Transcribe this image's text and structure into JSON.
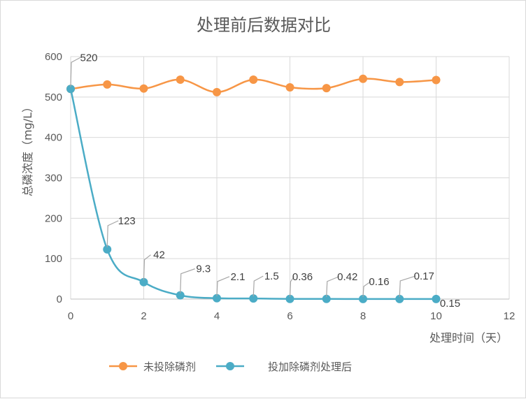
{
  "chart_data": {
    "type": "line",
    "title": "处理前后数据对比",
    "xlabel": "处理时间（天）",
    "ylabel": "总磷浓度（mg/L）",
    "xlim": [
      0,
      12
    ],
    "ylim": [
      0,
      600
    ],
    "x_ticks": [
      "0",
      "2",
      "4",
      "6",
      "8",
      "10",
      "12"
    ],
    "y_ticks": [
      "0",
      "100",
      "200",
      "300",
      "400",
      "500",
      "600"
    ],
    "grid": true,
    "legend_position": "bottom",
    "series": [
      {
        "name": "未投除磷剂",
        "color": "#F79646",
        "x": [
          0,
          1,
          2,
          3,
          4,
          5,
          6,
          7,
          8,
          9,
          10
        ],
        "values": [
          520,
          531,
          521,
          543,
          512,
          543,
          524,
          522,
          545,
          537,
          542
        ]
      },
      {
        "name": "投加除磷剂处理后",
        "color": "#4BACC6",
        "x": [
          0,
          1,
          2,
          3,
          4,
          5,
          6,
          7,
          8,
          9,
          10
        ],
        "values": [
          520,
          123,
          42,
          9.3,
          2.1,
          1.5,
          0.36,
          0.42,
          0.16,
          0.17,
          0.15
        ],
        "labels": [
          "520",
          "123",
          "42",
          "9.3",
          "2.1",
          "1.5",
          "0.36",
          "0.42",
          "0.16",
          "0.17",
          "0.15"
        ]
      }
    ]
  }
}
